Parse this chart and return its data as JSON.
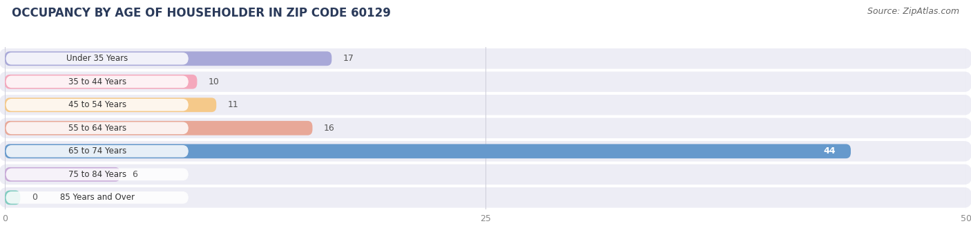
{
  "title": "OCCUPANCY BY AGE OF HOUSEHOLDER IN ZIP CODE 60129",
  "source": "Source: ZipAtlas.com",
  "categories": [
    "Under 35 Years",
    "35 to 44 Years",
    "45 to 54 Years",
    "55 to 64 Years",
    "65 to 74 Years",
    "75 to 84 Years",
    "85 Years and Over"
  ],
  "values": [
    17,
    10,
    11,
    16,
    44,
    6,
    0
  ],
  "bar_colors": [
    "#a8a8d8",
    "#f4a8bc",
    "#f5c98a",
    "#e8a898",
    "#6699cc",
    "#c8aad8",
    "#80ccc0"
  ],
  "row_bg_color": "#ededf5",
  "xlim": [
    0,
    50
  ],
  "xticks": [
    0,
    25,
    50
  ],
  "title_fontsize": 12,
  "source_fontsize": 9,
  "bar_label_fontsize": 9,
  "category_fontsize": 8.5,
  "bg_color": "#ffffff",
  "bar_height": 0.62,
  "inside_label_threshold": 40,
  "inside_label_color": "#ffffff",
  "outside_label_color": "#555555",
  "category_label_color": "#333333",
  "grid_color": "#d0d0dc",
  "tick_color": "#888888"
}
